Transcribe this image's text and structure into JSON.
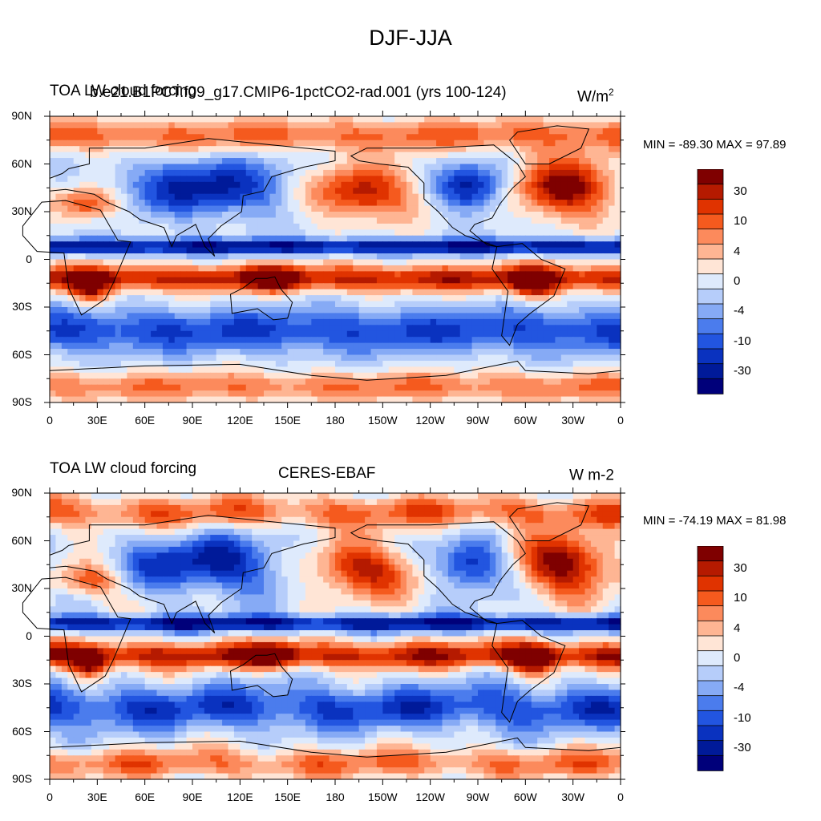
{
  "title": "DJF-JJA",
  "colorscale": [
    "#7f0000",
    "#b51a00",
    "#e03300",
    "#f55a1e",
    "#fc8a5c",
    "#feb593",
    "#ffe5d6",
    "#deeafc",
    "#b6cdfa",
    "#86aaf5",
    "#4b7ced",
    "#2255e0",
    "#0a32bf",
    "#001a99",
    "#00007a"
  ],
  "colorbar_labels": [
    "30",
    "10",
    "4",
    "0",
    "-4",
    "-10",
    "-30"
  ],
  "lat_labels": [
    "90N",
    "60N",
    "30N",
    "0",
    "30S",
    "60S",
    "90S"
  ],
  "lon_labels": [
    "0",
    "30E",
    "60E",
    "90E",
    "120E",
    "150E",
    "180",
    "150W",
    "120W",
    "90W",
    "60W",
    "30W",
    "0"
  ],
  "panels": [
    {
      "left_title": "TOA LW cloud forcing",
      "center_title": "b.e21.B1PCT.f09_g17.CMIP6-1pctCO2-rad.001 (yrs 100-124)",
      "right_units": "W/m",
      "right_units_sup": "2",
      "min_max": "MIN = -89.30 MAX =  97.89"
    },
    {
      "left_title": "TOA LW cloud forcing",
      "center_title": "CERES-EBAF",
      "right_units": "W m-2",
      "right_units_sup": "",
      "min_max": "MIN = -74.19 MAX =  81.98"
    }
  ]
}
